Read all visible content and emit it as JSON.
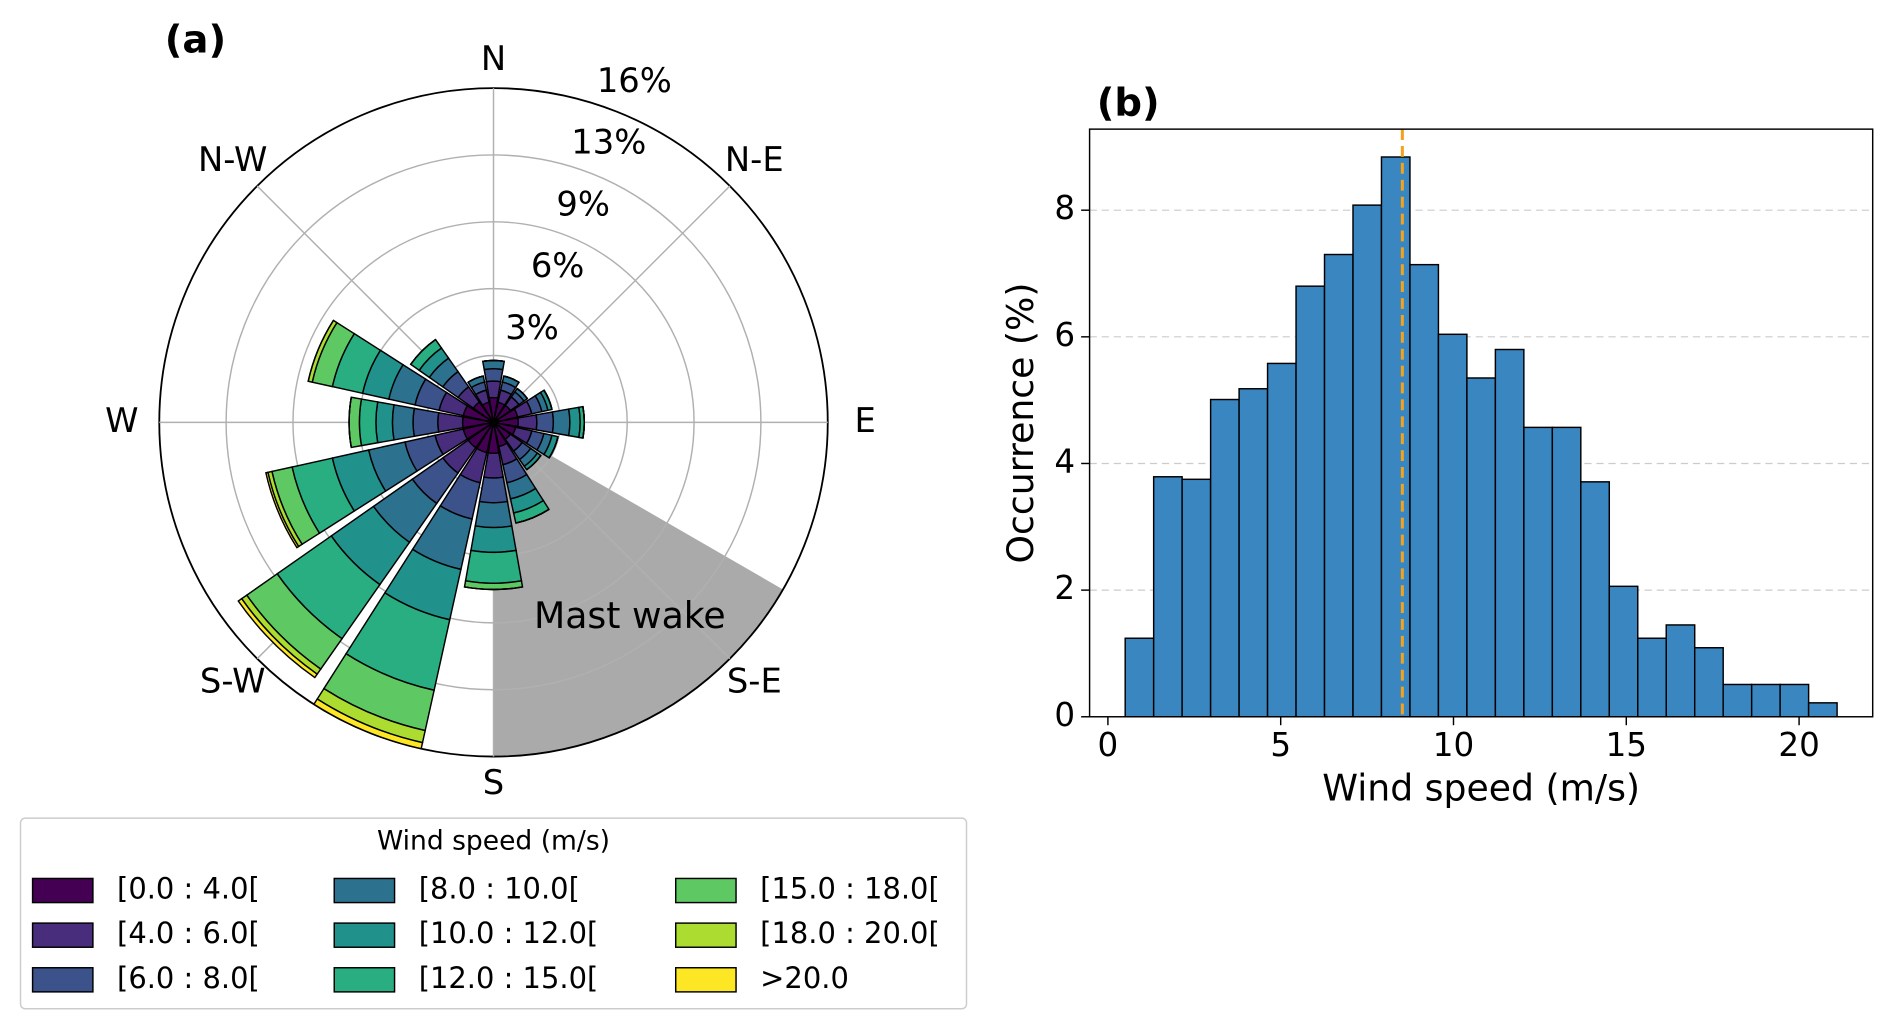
{
  "chart_data": [
    {
      "type": "windrose",
      "title": "(a)",
      "theta": [
        0,
        22.5,
        45,
        67.5,
        90,
        112.5,
        135,
        157.5,
        180,
        202.5,
        225,
        247.5,
        270,
        292.5,
        315,
        337.5
      ],
      "series": [
        {
          "name": "[0.0 : 4.0[",
          "color": "#440154",
          "values": [
            1.2,
            1.0,
            1.0,
            1.2,
            1.2,
            1.1,
            1.0,
            1.2,
            1.5,
            1.5,
            1.5,
            1.5,
            1.5,
            1.5,
            1.2,
            1.0
          ]
        },
        {
          "name": "[4.0 : 6.0[",
          "color": "#472d7b",
          "values": [
            0.8,
            0.6,
            0.5,
            0.7,
            0.9,
            0.8,
            0.7,
            0.9,
            1.2,
            1.5,
            1.5,
            1.4,
            1.2,
            1.2,
            0.9,
            0.6
          ]
        },
        {
          "name": "[6.0 : 8.0[",
          "color": "#3b528b",
          "values": [
            0.6,
            0.4,
            0.3,
            0.5,
            0.8,
            0.6,
            0.5,
            0.9,
            1.2,
            1.8,
            1.8,
            1.5,
            1.2,
            1.2,
            0.9,
            0.4
          ]
        },
        {
          "name": "[8.0 : 10.0[",
          "color": "#2c728e",
          "values": [
            0.4,
            0.3,
            0.2,
            0.3,
            0.8,
            0.4,
            0.4,
            0.8,
            1.2,
            2.5,
            2.3,
            1.8,
            1.0,
            1.3,
            0.8,
            0.3
          ]
        },
        {
          "name": "[10.0 : 12.0[",
          "color": "#21918c",
          "values": [
            0,
            0,
            0,
            0.2,
            0.5,
            0.3,
            0.2,
            0.7,
            1.2,
            2.5,
            2.5,
            1.8,
            0.8,
            1.3,
            0.6,
            0
          ]
        },
        {
          "name": "[12.0 : 15.0[",
          "color": "#28ae80",
          "values": [
            0,
            0,
            0,
            0,
            0.2,
            0,
            0,
            0.5,
            1.5,
            3.5,
            3.2,
            2.0,
            0.8,
            1.5,
            0.5,
            0
          ]
        },
        {
          "name": "[15.0 : 18.0[",
          "color": "#5ec962",
          "values": [
            0,
            0,
            0,
            0,
            0,
            0,
            0,
            0,
            0.3,
            2.0,
            1.8,
            1.0,
            0.5,
            1.0,
            0,
            0
          ]
        },
        {
          "name": "[18.0 : 20.0[",
          "color": "#addc30",
          "values": [
            0,
            0,
            0,
            0,
            0,
            0,
            0,
            0,
            0,
            0.6,
            0.3,
            0.2,
            0,
            0.2,
            0,
            0
          ]
        },
        {
          "name": ">20.0",
          "color": "#fde725",
          "values": [
            0,
            0,
            0,
            0,
            0,
            0,
            0,
            0,
            0,
            0.3,
            0.2,
            0.1,
            0,
            0,
            0,
            0
          ]
        }
      ],
      "rlim": [
        0,
        16.2
      ],
      "rticks": [
        {
          "value": 3.24,
          "label": "3%"
        },
        {
          "value": 6.48,
          "label": "6%"
        },
        {
          "value": 9.72,
          "label": "9%"
        },
        {
          "value": 12.96,
          "label": "13%"
        },
        {
          "value": 16.2,
          "label": "16%"
        }
      ],
      "xticks": [
        {
          "value": 0,
          "label": "N"
        },
        {
          "value": 45,
          "label": "N-E"
        },
        {
          "value": 90,
          "label": "E"
        },
        {
          "value": 135,
          "label": "S-E"
        },
        {
          "value": 180,
          "label": "S"
        },
        {
          "value": 225,
          "label": "S-W"
        },
        {
          "value": 270,
          "label": "W"
        },
        {
          "value": 315,
          "label": "N-W"
        }
      ],
      "legend_title": "Wind speed (m/s)",
      "annotation": "Mast wake",
      "wake": [
        120,
        180
      ],
      "wake_color": "#aaaaaa"
    },
    {
      "type": "histogram",
      "title": "(b)",
      "bins": [
        0.5,
        1.324,
        2.148,
        2.972,
        3.796,
        4.62,
        5.444,
        6.268,
        7.092,
        7.916,
        8.74,
        9.564,
        10.388,
        11.212,
        12.036,
        12.86,
        13.684,
        14.508,
        15.332,
        16.156,
        16.98,
        17.804,
        18.628,
        19.452,
        20.276,
        21.1
      ],
      "values": [
        1.24,
        3.79,
        3.75,
        5.01,
        5.18,
        5.58,
        6.8,
        7.3,
        8.08,
        8.84,
        7.14,
        6.04,
        5.35,
        5.8,
        4.57,
        4.57,
        3.71,
        2.06,
        1.24,
        1.45,
        1.09,
        0.51,
        0.51,
        0.51,
        0.22
      ],
      "color": "#3a86c1",
      "xlim": [
        -0.53,
        22.13
      ],
      "ylim": [
        0,
        9.28
      ],
      "xticks": [
        0,
        5,
        10,
        15,
        20
      ],
      "yticks": [
        0,
        2,
        4,
        6,
        8
      ],
      "xlabel": "Wind speed (m/s)",
      "ylabel": "Occurrence (%)",
      "grid": "y",
      "mean_line": 8.52,
      "mean_color": "#f5a21b"
    }
  ]
}
